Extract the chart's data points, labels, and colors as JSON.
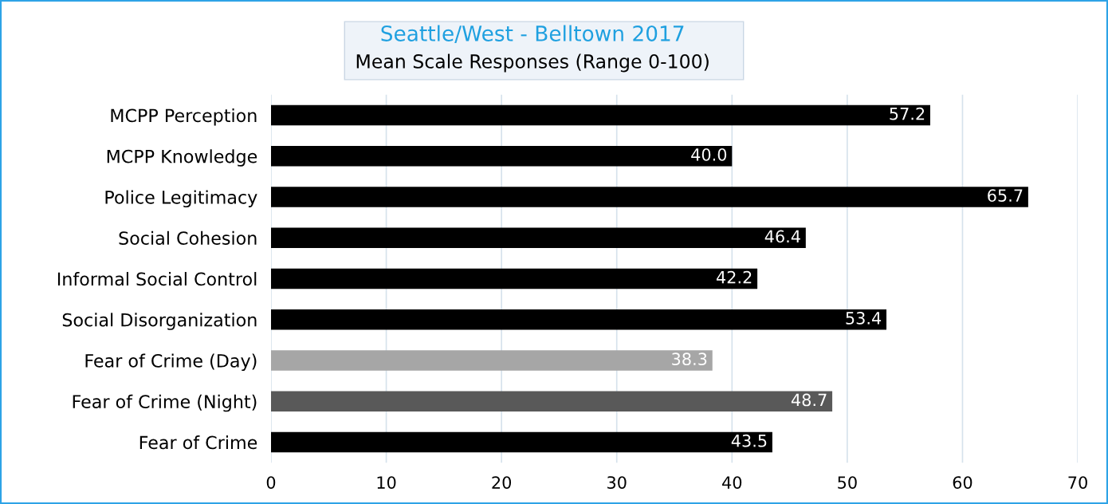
{
  "chart_data": {
    "type": "bar",
    "orientation": "horizontal",
    "title": "Seattle/West - Belltown 2017",
    "subtitle": "Mean Scale Responses (Range 0-100)",
    "categories": [
      "MCPP Perception",
      "MCPP Knowledge",
      "Police Legitimacy",
      "Social Cohesion",
      "Informal Social Control",
      "Social Disorganization",
      "Fear of Crime (Day)",
      "Fear of Crime (Night)",
      "Fear of Crime"
    ],
    "values": [
      57.2,
      40.0,
      65.7,
      46.4,
      42.2,
      53.4,
      38.3,
      48.7,
      43.5
    ],
    "colors": [
      "#000000",
      "#000000",
      "#000000",
      "#000000",
      "#000000",
      "#000000",
      "#a6a6a6",
      "#595959",
      "#000000"
    ],
    "value_labels": [
      "57.2",
      "40.0",
      "65.7",
      "46.4",
      "42.2",
      "53.4",
      "38.3",
      "48.7",
      "43.5"
    ],
    "xlim": [
      0,
      70
    ],
    "xticks": [
      0,
      10,
      20,
      30,
      40,
      50,
      60,
      70
    ],
    "grid": "x"
  }
}
